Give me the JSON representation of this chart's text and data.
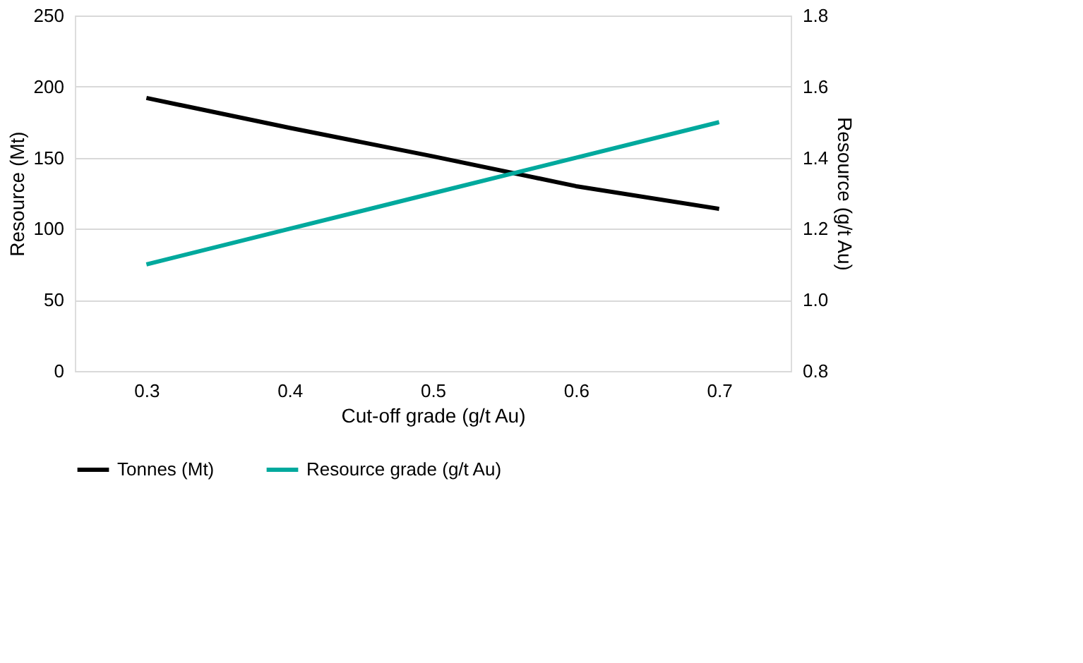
{
  "chart_data": {
    "type": "line",
    "xlabel": "Cut-off grade (g/t Au)",
    "ylabel": "Resource (Mt)",
    "y2label": "Resource (g/t Au)",
    "categories": [
      "0.3",
      "0.4",
      "0.5",
      "0.6",
      "0.7"
    ],
    "series": [
      {
        "name": "Tonnes (Mt)",
        "color": "#000000",
        "values": [
          192,
          171,
          151,
          130,
          114
        ]
      },
      {
        "name": "Resource grade (g/t Au)",
        "color": "#00a99d",
        "values": [
          1.1,
          1.2,
          1.3,
          1.4,
          1.5
        ],
        "axis": "y2"
      }
    ],
    "ylim": [
      0,
      250
    ],
    "yticks": [
      0,
      50,
      100,
      150,
      200,
      250
    ],
    "y2lim": [
      0.8,
      1.8
    ],
    "y2ticks": [
      {
        "value": 0.8,
        "label": "0.8"
      },
      {
        "value": 1.0,
        "label": "1.0"
      },
      {
        "value": 1.2,
        "label": "1.2"
      },
      {
        "value": 1.4,
        "label": "1.4"
      },
      {
        "value": 1.6,
        "label": "1.6"
      },
      {
        "value": 1.8,
        "label": "1.8"
      }
    ],
    "grid": "y",
    "legend": "bottom",
    "marker": "none",
    "line_style": "solid"
  }
}
